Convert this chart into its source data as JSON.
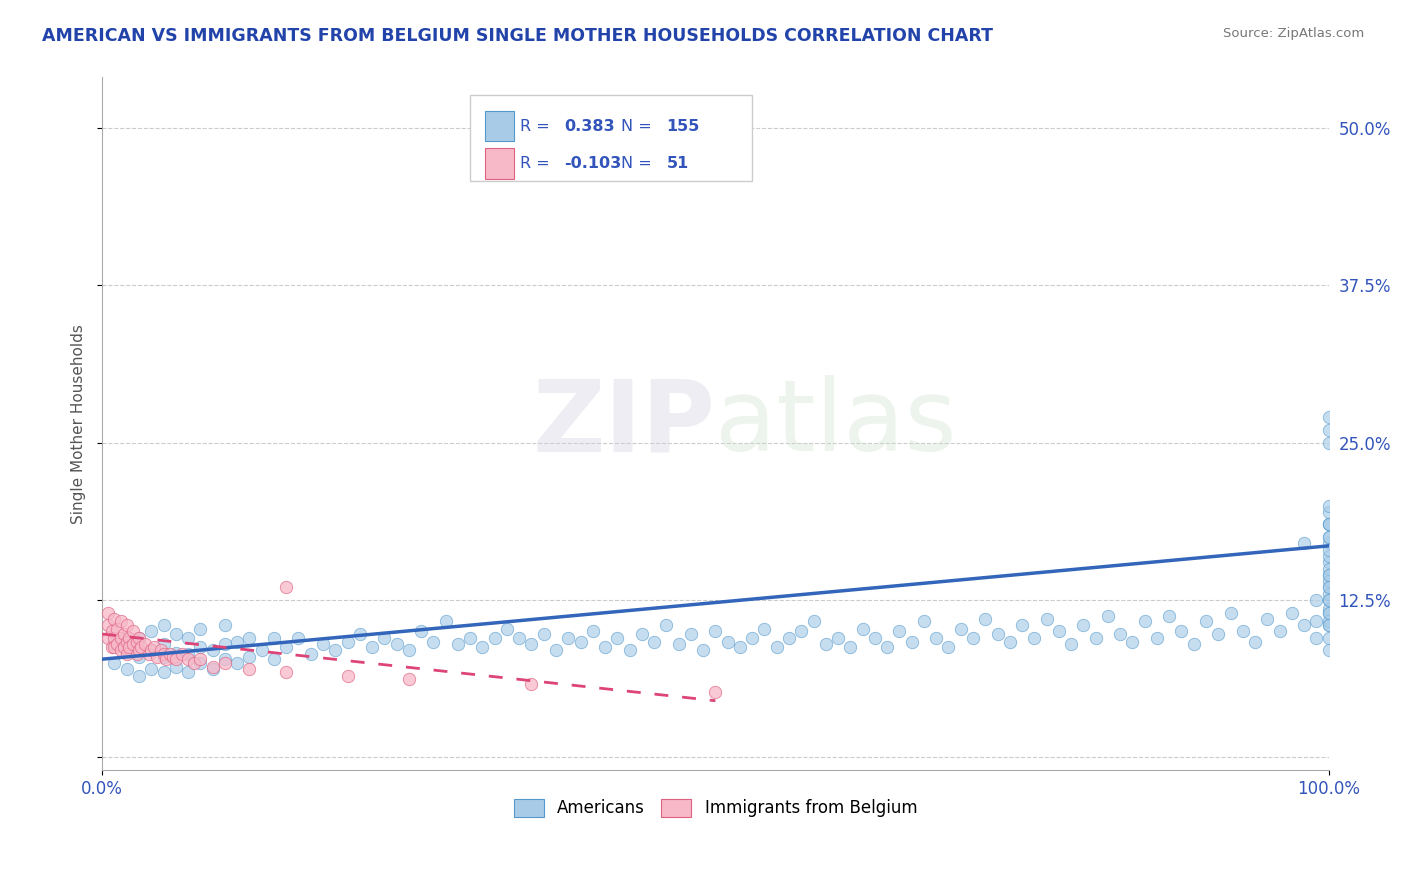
{
  "title": "AMERICAN VS IMMIGRANTS FROM BELGIUM SINGLE MOTHER HOUSEHOLDS CORRELATION CHART",
  "source_text": "Source: ZipAtlas.com",
  "ylabel": "Single Mother Households",
  "watermark": "ZIPatlas",
  "xlim": [
    0.0,
    1.0
  ],
  "ylim": [
    -0.01,
    0.54
  ],
  "yticks": [
    0.0,
    0.125,
    0.25,
    0.375,
    0.5
  ],
  "ytick_labels": [
    "",
    "12.5%",
    "25.0%",
    "37.5%",
    "50.0%"
  ],
  "xtick_labels": [
    "0.0%",
    "100.0%"
  ],
  "xtick_positions": [
    0.0,
    1.0
  ],
  "legend_r1": "0.383",
  "legend_n1": "155",
  "legend_r2": "-0.103",
  "legend_n2": "51",
  "blue_scatter_color": "#a8cce8",
  "blue_edge_color": "#5599cc",
  "pink_scatter_color": "#f7b8c8",
  "pink_edge_color": "#e06080",
  "blue_line_color": "#3366bb",
  "pink_line_color": "#dd4477",
  "title_color": "#2244aa",
  "axis_label_color": "#3355bb",
  "background_color": "#ffffff",
  "grid_color": "#cccccc",
  "americans_x": [
    0.01,
    0.01,
    0.02,
    0.02,
    0.02,
    0.03,
    0.03,
    0.03,
    0.04,
    0.04,
    0.04,
    0.05,
    0.05,
    0.05,
    0.05,
    0.06,
    0.06,
    0.06,
    0.07,
    0.07,
    0.07,
    0.08,
    0.08,
    0.08,
    0.09,
    0.09,
    0.1,
    0.1,
    0.1,
    0.11,
    0.11,
    0.12,
    0.12,
    0.13,
    0.14,
    0.14,
    0.15,
    0.16,
    0.17,
    0.18,
    0.19,
    0.2,
    0.21,
    0.22,
    0.23,
    0.24,
    0.25,
    0.26,
    0.27,
    0.28,
    0.29,
    0.3,
    0.31,
    0.32,
    0.33,
    0.34,
    0.35,
    0.36,
    0.37,
    0.38,
    0.39,
    0.4,
    0.41,
    0.42,
    0.43,
    0.44,
    0.45,
    0.46,
    0.47,
    0.48,
    0.49,
    0.5,
    0.51,
    0.52,
    0.53,
    0.54,
    0.55,
    0.56,
    0.57,
    0.58,
    0.59,
    0.6,
    0.61,
    0.62,
    0.63,
    0.64,
    0.65,
    0.66,
    0.67,
    0.68,
    0.69,
    0.7,
    0.71,
    0.72,
    0.73,
    0.74,
    0.75,
    0.76,
    0.77,
    0.78,
    0.79,
    0.8,
    0.81,
    0.82,
    0.83,
    0.84,
    0.85,
    0.86,
    0.87,
    0.88,
    0.89,
    0.9,
    0.91,
    0.92,
    0.93,
    0.94,
    0.95,
    0.96,
    0.97,
    0.98,
    0.98,
    0.99,
    0.99,
    0.99,
    1.0,
    1.0,
    1.0,
    1.0,
    1.0,
    1.0,
    1.0,
    1.0,
    1.0,
    1.0,
    1.0,
    1.0,
    1.0,
    1.0,
    1.0,
    1.0,
    1.0,
    1.0,
    1.0,
    1.0,
    1.0,
    1.0,
    1.0,
    1.0,
    1.0,
    1.0,
    1.0,
    1.0,
    1.0,
    1.0,
    1.0
  ],
  "americans_y": [
    0.075,
    0.09,
    0.07,
    0.085,
    0.095,
    0.065,
    0.08,
    0.095,
    0.07,
    0.085,
    0.1,
    0.068,
    0.08,
    0.09,
    0.105,
    0.072,
    0.083,
    0.098,
    0.068,
    0.082,
    0.095,
    0.075,
    0.088,
    0.102,
    0.07,
    0.085,
    0.078,
    0.09,
    0.105,
    0.075,
    0.092,
    0.08,
    0.095,
    0.085,
    0.078,
    0.095,
    0.088,
    0.095,
    0.082,
    0.09,
    0.085,
    0.092,
    0.098,
    0.088,
    0.095,
    0.09,
    0.085,
    0.1,
    0.092,
    0.108,
    0.09,
    0.095,
    0.088,
    0.095,
    0.102,
    0.095,
    0.09,
    0.098,
    0.085,
    0.095,
    0.092,
    0.1,
    0.088,
    0.095,
    0.085,
    0.098,
    0.092,
    0.105,
    0.09,
    0.098,
    0.085,
    0.1,
    0.092,
    0.088,
    0.095,
    0.102,
    0.088,
    0.095,
    0.1,
    0.108,
    0.09,
    0.095,
    0.088,
    0.102,
    0.095,
    0.088,
    0.1,
    0.092,
    0.108,
    0.095,
    0.088,
    0.102,
    0.095,
    0.11,
    0.098,
    0.092,
    0.105,
    0.095,
    0.11,
    0.1,
    0.09,
    0.105,
    0.095,
    0.112,
    0.098,
    0.092,
    0.108,
    0.095,
    0.112,
    0.1,
    0.09,
    0.108,
    0.098,
    0.115,
    0.1,
    0.092,
    0.11,
    0.1,
    0.115,
    0.105,
    0.17,
    0.095,
    0.108,
    0.125,
    0.095,
    0.105,
    0.115,
    0.125,
    0.135,
    0.145,
    0.155,
    0.108,
    0.118,
    0.13,
    0.14,
    0.15,
    0.16,
    0.17,
    0.105,
    0.165,
    0.175,
    0.185,
    0.115,
    0.125,
    0.175,
    0.185,
    0.195,
    0.135,
    0.145,
    0.2,
    0.185,
    0.25,
    0.26,
    0.27,
    0.085
  ],
  "immigrants_x": [
    0.005,
    0.005,
    0.005,
    0.008,
    0.008,
    0.01,
    0.01,
    0.01,
    0.012,
    0.012,
    0.015,
    0.015,
    0.015,
    0.018,
    0.018,
    0.02,
    0.02,
    0.02,
    0.022,
    0.022,
    0.025,
    0.025,
    0.028,
    0.028,
    0.03,
    0.03,
    0.032,
    0.035,
    0.038,
    0.04,
    0.042,
    0.045,
    0.048,
    0.05,
    0.052,
    0.055,
    0.058,
    0.06,
    0.065,
    0.07,
    0.075,
    0.08,
    0.09,
    0.1,
    0.12,
    0.15,
    0.2,
    0.25,
    0.35,
    0.5,
    0.15
  ],
  "immigrants_y": [
    0.115,
    0.095,
    0.105,
    0.1,
    0.088,
    0.11,
    0.095,
    0.088,
    0.102,
    0.09,
    0.095,
    0.108,
    0.085,
    0.098,
    0.088,
    0.092,
    0.105,
    0.082,
    0.095,
    0.088,
    0.1,
    0.09,
    0.092,
    0.082,
    0.095,
    0.085,
    0.088,
    0.09,
    0.082,
    0.085,
    0.088,
    0.08,
    0.085,
    0.082,
    0.078,
    0.082,
    0.08,
    0.078,
    0.082,
    0.078,
    0.075,
    0.078,
    0.072,
    0.075,
    0.07,
    0.068,
    0.065,
    0.062,
    0.058,
    0.052,
    0.135
  ],
  "blue_trend_x0": 0.0,
  "blue_trend_y0": 0.078,
  "blue_trend_x1": 1.0,
  "blue_trend_y1": 0.168,
  "pink_trend_x0": 0.0,
  "pink_trend_y0": 0.098,
  "pink_trend_x1": 0.5,
  "pink_trend_y1": 0.045
}
